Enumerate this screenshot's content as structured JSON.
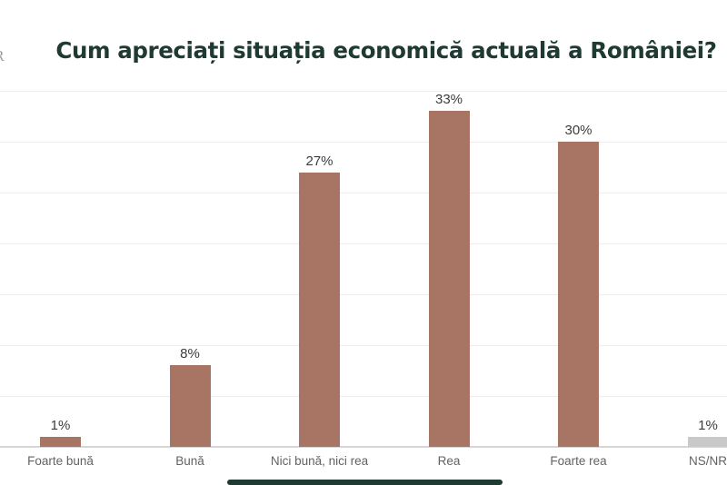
{
  "page": {
    "logo_fragment": "R",
    "accent_color": "#1f3a32"
  },
  "chart_data": {
    "type": "bar",
    "title": "Cum apreciați situația economică actuală a României?",
    "categories": [
      "Foarte bună",
      "Bună",
      "Nici bună, nici rea",
      "Rea",
      "Foarte rea",
      "NS/NR"
    ],
    "values": [
      1,
      8,
      27,
      33,
      30,
      1
    ],
    "value_labels": [
      "1%",
      "8%",
      "27%",
      "33%",
      "30%",
      "1%"
    ],
    "bar_colors": [
      "#a87464",
      "#a87464",
      "#a87464",
      "#a87464",
      "#a87464",
      "#c9c9c9"
    ],
    "xlabel": "",
    "ylabel": "",
    "ylim": [
      0,
      35
    ],
    "gridline_step": 5,
    "grid": true,
    "legend": "none",
    "value_label_position": "above-bar",
    "title_color": "#1f3a32",
    "gridline_color": "#ededed",
    "axis_line_color": "#d6d6d6",
    "value_label_color": "#3c3c3c",
    "category_label_color": "#636363"
  }
}
